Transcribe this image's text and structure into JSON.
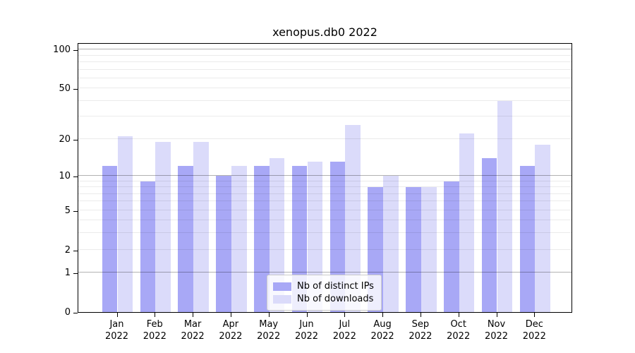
{
  "chart_data": {
    "type": "bar",
    "title": "xenopus.db0 2022",
    "scale": "log10(1+value), zero-based",
    "categories": [
      "Jan 2022",
      "Feb 2022",
      "Mar 2022",
      "Apr 2022",
      "May 2022",
      "Jun 2022",
      "Jul 2022",
      "Aug 2022",
      "Sep 2022",
      "Oct 2022",
      "Nov 2022",
      "Dec 2022"
    ],
    "series": [
      {
        "name": "Nb of distinct IPs",
        "color": "#a8a8f6",
        "values": [
          12,
          9,
          12,
          10,
          12,
          12,
          13,
          8,
          8,
          9,
          14,
          12
        ]
      },
      {
        "name": "Nb of downloads",
        "color": "#dbdbfa",
        "values": [
          21,
          19,
          19,
          12,
          14,
          13,
          26,
          10,
          8,
          22,
          40,
          18
        ]
      }
    ],
    "ylabel": "",
    "xlabel": "",
    "y_tick_labels": [
      100,
      50,
      20,
      10,
      5,
      2,
      1,
      0
    ],
    "major_gridlines": [
      1,
      10,
      100
    ],
    "minor_gridlines": [
      2,
      3,
      4,
      5,
      6,
      7,
      8,
      9,
      20,
      30,
      40,
      50,
      60,
      70,
      80,
      90
    ],
    "ylim_top_equivalent": 115,
    "grid": true,
    "legend_position": "lower center",
    "axis_color": "#000000",
    "background_color": "#ffffff"
  }
}
